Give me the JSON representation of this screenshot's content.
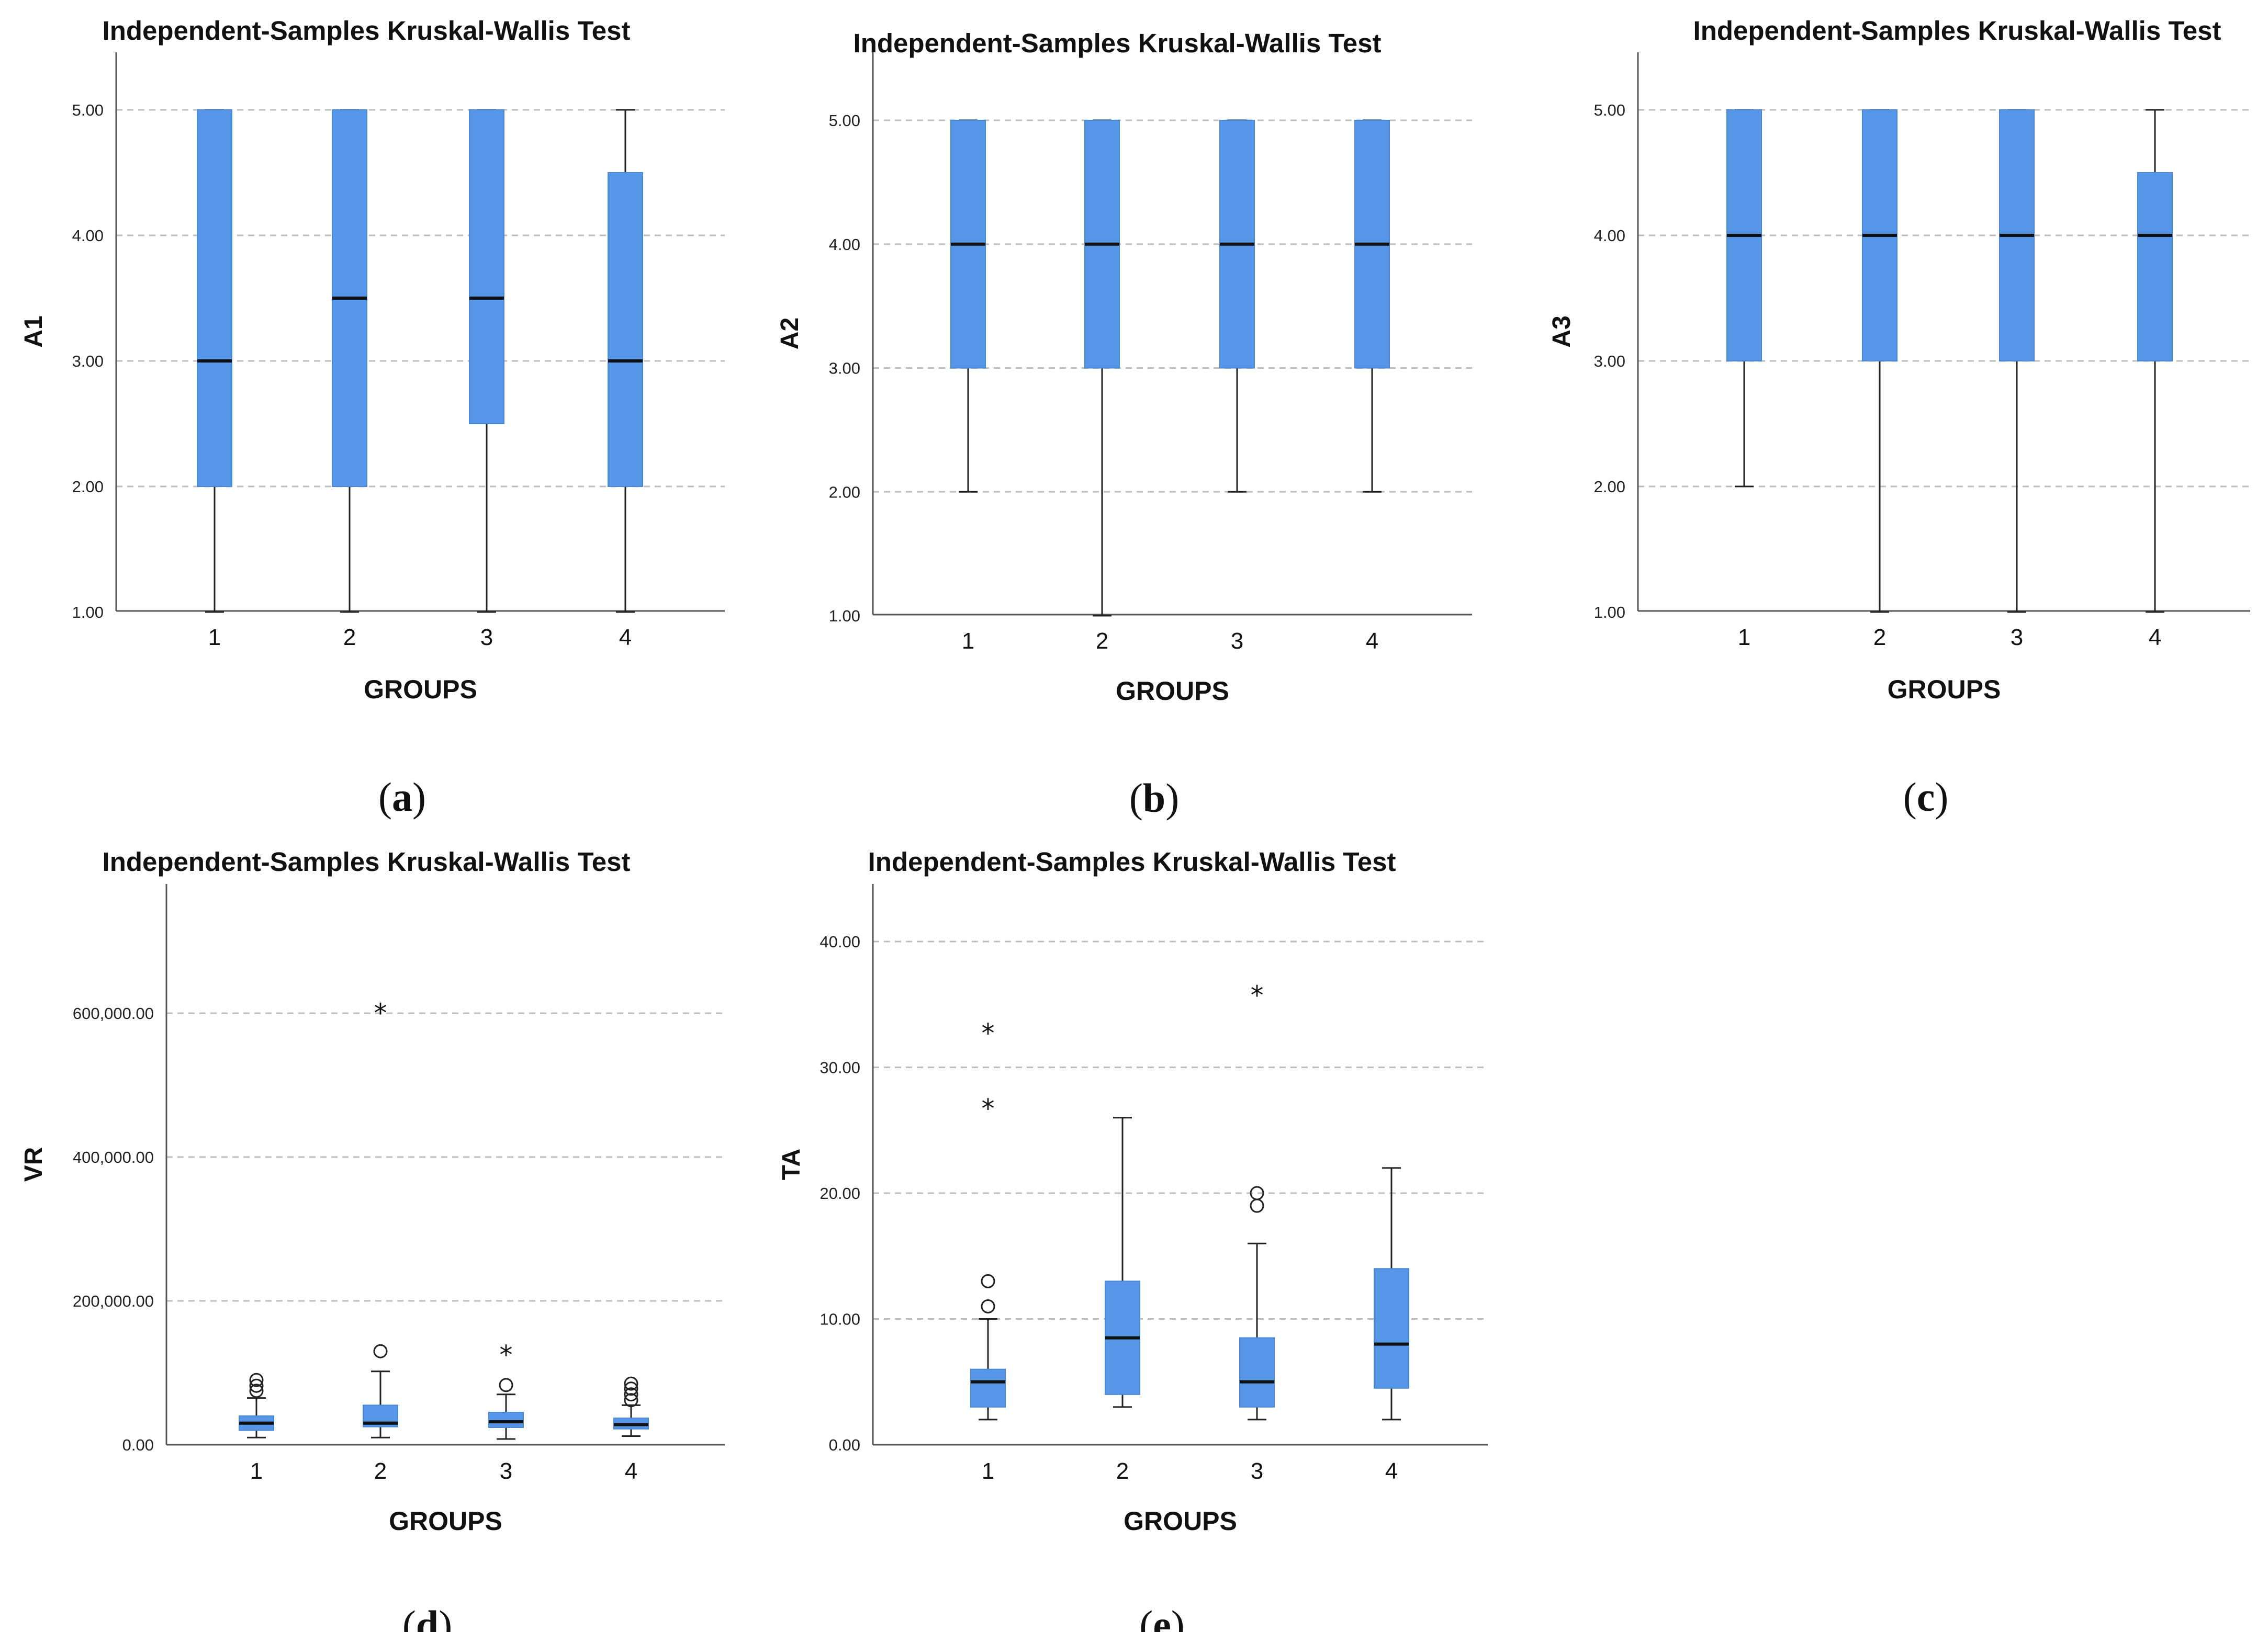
{
  "colors": {
    "box_fill": "#5596e6",
    "box_edge": "#4a87d6",
    "grid": "#bdbdbd",
    "axis": "#555555",
    "median": "#111111"
  },
  "chart_data": [
    {
      "id": "a",
      "panel_label": "a",
      "type": "boxplot",
      "title": "Independent-Samples Kruskal-Wallis Test",
      "xlabel": "GROUPS",
      "ylabel": "A1",
      "categories": [
        "1",
        "2",
        "3",
        "4"
      ],
      "ylim": [
        1,
        5
      ],
      "yticks": [
        1,
        2,
        3,
        4,
        5
      ],
      "ytick_labels": [
        "1.00",
        "2.00",
        "3.00",
        "4.00",
        "5.00"
      ],
      "grid": true,
      "boxes": [
        {
          "whisker_low": 1,
          "q1": 2,
          "median": 3,
          "q3": 5,
          "whisker_high": 5,
          "outliers": [],
          "extremes": []
        },
        {
          "whisker_low": 1,
          "q1": 2,
          "median": 3.5,
          "q3": 5,
          "whisker_high": 5,
          "outliers": [],
          "extremes": []
        },
        {
          "whisker_low": 1,
          "q1": 2.5,
          "median": 3.5,
          "q3": 5,
          "whisker_high": 5,
          "outliers": [],
          "extremes": []
        },
        {
          "whisker_low": 1,
          "q1": 2,
          "median": 3,
          "q3": 4.5,
          "whisker_high": 5,
          "outliers": [],
          "extremes": []
        }
      ]
    },
    {
      "id": "b",
      "panel_label": "b",
      "type": "boxplot",
      "title": "Independent-Samples Kruskal-Wallis Test",
      "xlabel": "GROUPS",
      "ylabel": "A2",
      "categories": [
        "1",
        "2",
        "3",
        "4"
      ],
      "ylim": [
        1,
        5
      ],
      "yticks": [
        1,
        2,
        3,
        4,
        5
      ],
      "ytick_labels": [
        "1.00",
        "2.00",
        "3.00",
        "4.00",
        "5.00"
      ],
      "grid": true,
      "boxes": [
        {
          "whisker_low": 2,
          "q1": 3,
          "median": 4,
          "q3": 5,
          "whisker_high": 5,
          "outliers": [],
          "extremes": []
        },
        {
          "whisker_low": 1,
          "q1": 3,
          "median": 4,
          "q3": 5,
          "whisker_high": 5,
          "outliers": [],
          "extremes": []
        },
        {
          "whisker_low": 2,
          "q1": 3,
          "median": 4,
          "q3": 5,
          "whisker_high": 5,
          "outliers": [],
          "extremes": []
        },
        {
          "whisker_low": 2,
          "q1": 3,
          "median": 4,
          "q3": 5,
          "whisker_high": 5,
          "outliers": [],
          "extremes": []
        }
      ]
    },
    {
      "id": "c",
      "panel_label": "c",
      "type": "boxplot",
      "title": "Independent-Samples Kruskal-Wallis Test",
      "xlabel": "GROUPS",
      "ylabel": "A3",
      "categories": [
        "1",
        "2",
        "3",
        "4"
      ],
      "ylim": [
        1,
        5
      ],
      "yticks": [
        1,
        2,
        3,
        4,
        5
      ],
      "ytick_labels": [
        "1.00",
        "2.00",
        "3.00",
        "4.00",
        "5.00"
      ],
      "grid": true,
      "boxes": [
        {
          "whisker_low": 2,
          "q1": 3,
          "median": 4,
          "q3": 5,
          "whisker_high": 5,
          "outliers": [],
          "extremes": []
        },
        {
          "whisker_low": 1,
          "q1": 3,
          "median": 4,
          "q3": 5,
          "whisker_high": 5,
          "outliers": [],
          "extremes": []
        },
        {
          "whisker_low": 1,
          "q1": 3,
          "median": 4,
          "q3": 5,
          "whisker_high": 5,
          "outliers": [],
          "extremes": []
        },
        {
          "whisker_low": 1,
          "q1": 3,
          "median": 4,
          "q3": 4.5,
          "whisker_high": 5,
          "outliers": [],
          "extremes": []
        }
      ]
    },
    {
      "id": "d",
      "panel_label": "d",
      "type": "boxplot",
      "title": "Independent-Samples Kruskal-Wallis Test",
      "xlabel": "GROUPS",
      "ylabel": "VR",
      "categories": [
        "1",
        "2",
        "3",
        "4"
      ],
      "ylim": [
        0,
        740000
      ],
      "yticks": [
        0,
        200000,
        400000,
        600000
      ],
      "ytick_labels": [
        "0.00",
        "200,000.00",
        "400,000.00",
        "600,000.00"
      ],
      "grid": true,
      "boxes": [
        {
          "whisker_low": 10000,
          "q1": 20000,
          "median": 30000,
          "q3": 40000,
          "whisker_high": 65000,
          "outliers": [
            75000,
            82000,
            90000
          ],
          "extremes": []
        },
        {
          "whisker_low": 10000,
          "q1": 25000,
          "median": 30000,
          "q3": 55000,
          "whisker_high": 102000,
          "outliers": [
            130000
          ],
          "extremes": [
            605000
          ]
        },
        {
          "whisker_low": 8000,
          "q1": 24000,
          "median": 32000,
          "q3": 45000,
          "whisker_high": 70000,
          "outliers": [
            83000
          ],
          "extremes": [
            130000
          ]
        },
        {
          "whisker_low": 12000,
          "q1": 22000,
          "median": 28000,
          "q3": 37000,
          "whisker_high": 55000,
          "outliers": [
            62000,
            70000,
            78000,
            85000
          ],
          "extremes": []
        }
      ]
    },
    {
      "id": "e",
      "panel_label": "e",
      "type": "boxplot",
      "title": "Independent-Samples Kruskal-Wallis Test",
      "xlabel": "GROUPS",
      "ylabel": "TA",
      "categories": [
        "1",
        "2",
        "3",
        "4"
      ],
      "ylim": [
        0,
        45
      ],
      "yticks": [
        0,
        10,
        20,
        30,
        40
      ],
      "ytick_labels": [
        "0.00",
        "10.00",
        "20.00",
        "30.00",
        "40.00"
      ],
      "grid": true,
      "boxes": [
        {
          "whisker_low": 2,
          "q1": 3,
          "median": 5,
          "q3": 6,
          "whisker_high": 10,
          "outliers": [
            11,
            13
          ],
          "extremes": [
            27,
            33
          ]
        },
        {
          "whisker_low": 3,
          "q1": 4,
          "median": 8.5,
          "q3": 13,
          "whisker_high": 26,
          "outliers": [],
          "extremes": []
        },
        {
          "whisker_low": 2,
          "q1": 3,
          "median": 5,
          "q3": 8.5,
          "whisker_high": 16,
          "outliers": [
            19,
            20
          ],
          "extremes": [
            36
          ]
        },
        {
          "whisker_low": 2,
          "q1": 4.5,
          "median": 8,
          "q3": 14,
          "whisker_high": 22,
          "outliers": [],
          "extremes": []
        }
      ]
    }
  ]
}
